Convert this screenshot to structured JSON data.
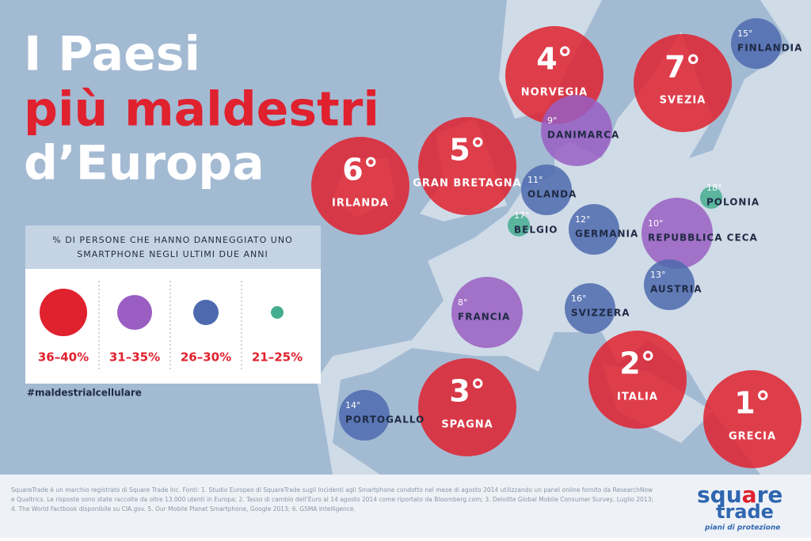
{
  "header": {
    "title_lines": [
      "I Paesi",
      "più maldestri",
      "d’Europa"
    ]
  },
  "legend": {
    "title_lines": [
      "% DI PERSONE CHE HANNO DANNEGGIATO UNO",
      "SMARTPHONE NEGLI ULTIMI DUE ANNI"
    ],
    "items": [
      {
        "label": "36–40%",
        "color": "#e0212e"
      },
      {
        "label": "31–35%",
        "color": "#9a5ec2"
      },
      {
        "label": "26–30%",
        "color": "#4d6aae"
      },
      {
        "label": "21–25%",
        "color": "#45ad90"
      }
    ]
  },
  "hashtag": "#maldestrialcellulare",
  "countries": [
    {
      "rank": "1°",
      "name": "GRECIA",
      "color": "#e0212e"
    },
    {
      "rank": "2°",
      "name": "ITALIA",
      "color": "#e0212e"
    },
    {
      "rank": "3°",
      "name": "SPAGNA",
      "color": "#e0212e"
    },
    {
      "rank": "4°",
      "name": "NORVEGIA",
      "color": "#e0212e"
    },
    {
      "rank": "5°",
      "name": "GRAN BRETAGNA",
      "color": "#e0212e"
    },
    {
      "rank": "6°",
      "name": "IRLANDA",
      "color": "#e0212e"
    },
    {
      "rank": "7°",
      "name": "SVEZIA",
      "color": "#e0212e"
    },
    {
      "rank": "8°",
      "name": "FRANCIA",
      "color": "#9a5ec2"
    },
    {
      "rank": "9°",
      "name": "DANIMARCA",
      "color": "#9a5ec2"
    },
    {
      "rank": "10°",
      "name": "REPUBBLICA CECA",
      "color": "#9a5ec2"
    },
    {
      "rank": "11°",
      "name": "OLANDA",
      "color": "#4d6aae"
    },
    {
      "rank": "12°",
      "name": "GERMANIA",
      "color": "#4d6aae"
    },
    {
      "rank": "13°",
      "name": "AUSTRIA",
      "color": "#4d6aae"
    },
    {
      "rank": "14°",
      "name": "PORTOGALLO",
      "color": "#4d6aae"
    },
    {
      "rank": "15°",
      "name": "FINLANDIA",
      "color": "#4d6aae"
    },
    {
      "rank": "16°",
      "name": "SVIZZERA",
      "color": "#4d6aae"
    },
    {
      "rank": "17°",
      "name": "BELGIO",
      "color": "#45ad90"
    },
    {
      "rank": "18°",
      "name": "POLONIA",
      "color": "#45ad90"
    }
  ],
  "footer": {
    "lines": [
      "SquareTrade è un marchio registrato di Square Trade Inc. Fonti: 1. Studio Europeo di SquareTrade sugli Incidenti agli Smartphone condotto nel mese di agosto 2014 utilizzando un panel online fornito da ResearchNow",
      "e Qualtrics. Le risposte sono state raccolte da oltre 13.000 utenti in Europa; 2. Tasso di cambio dell’Euro al 14 agosto 2014 come riportato da Bloomberg.com; 3. Deloitte Global Mobile Consumer Survey, Luglio 2013;",
      "4. The World Factbook disponibile su CIA.gov. 5. Our Mobile Planet Smartphone, Google 2013; 6. GSMA Intelligence."
    ],
    "logo": {
      "brand_top": "squ",
      "brand_mid": "a",
      "brand_end": "re",
      "brand_bottom": "trade",
      "tagline": "piani di protezione"
    }
  }
}
